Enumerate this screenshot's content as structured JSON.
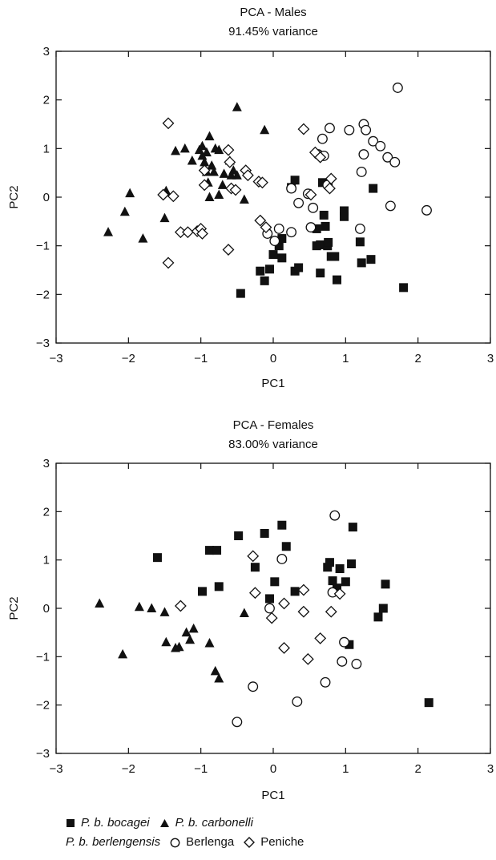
{
  "chart_data": [
    {
      "type": "scatter",
      "title": "PCA - Males",
      "subtitle": "91.45% variance",
      "xlabel": "PC1",
      "ylabel": "PC2",
      "xlim": [
        -3,
        3
      ],
      "ylim": [
        -3,
        3
      ],
      "xticks": [
        "−3",
        "−2",
        "−1",
        "0",
        "1",
        "2",
        "3"
      ],
      "yticks": [
        "3",
        "2",
        "1",
        "0",
        "−1",
        "−2",
        "−3"
      ],
      "grid": false,
      "series": [
        {
          "name": "P. b. bocagei",
          "marker": "filled-square",
          "points": [
            [
              -0.45,
              -1.98
            ],
            [
              -0.18,
              -1.52
            ],
            [
              -0.12,
              -1.72
            ],
            [
              -0.05,
              -1.48
            ],
            [
              0.0,
              -1.18
            ],
            [
              0.08,
              -1.0
            ],
            [
              0.12,
              -0.85
            ],
            [
              0.12,
              -1.25
            ],
            [
              0.25,
              0.2
            ],
            [
              0.3,
              0.35
            ],
            [
              0.3,
              -1.52
            ],
            [
              0.35,
              -1.45
            ],
            [
              0.6,
              -0.65
            ],
            [
              0.6,
              -1.0
            ],
            [
              0.65,
              -1.56
            ],
            [
              0.65,
              -0.98
            ],
            [
              0.68,
              0.3
            ],
            [
              0.7,
              -0.37
            ],
            [
              0.72,
              -0.6
            ],
            [
              0.75,
              -1.0
            ],
            [
              0.76,
              -0.93
            ],
            [
              0.8,
              -1.22
            ],
            [
              0.85,
              -1.22
            ],
            [
              0.88,
              -1.7
            ],
            [
              0.98,
              -0.28
            ],
            [
              0.98,
              -0.4
            ],
            [
              1.2,
              -0.92
            ],
            [
              1.22,
              -1.35
            ],
            [
              1.35,
              -1.28
            ],
            [
              1.38,
              0.18
            ],
            [
              1.8,
              -1.86
            ]
          ]
        },
        {
          "name": "P. b. carbonelli",
          "marker": "filled-triangle",
          "points": [
            [
              -2.28,
              -0.72
            ],
            [
              -2.05,
              -0.3
            ],
            [
              -1.98,
              0.08
            ],
            [
              -1.8,
              -0.85
            ],
            [
              -1.5,
              -0.43
            ],
            [
              -1.48,
              0.13
            ],
            [
              -1.35,
              0.95
            ],
            [
              -1.22,
              1.0
            ],
            [
              -1.12,
              0.75
            ],
            [
              -1.02,
              0.97
            ],
            [
              -0.98,
              1.05
            ],
            [
              -0.98,
              0.85
            ],
            [
              -0.95,
              0.72
            ],
            [
              -0.92,
              0.92
            ],
            [
              -0.92,
              0.52
            ],
            [
              -0.9,
              0.3
            ],
            [
              -0.88,
              0.0
            ],
            [
              -0.88,
              1.25
            ],
            [
              -0.85,
              0.65
            ],
            [
              -0.82,
              0.52
            ],
            [
              -0.8,
              1.0
            ],
            [
              -0.75,
              0.05
            ],
            [
              -0.75,
              0.97
            ],
            [
              -0.7,
              0.25
            ],
            [
              -0.68,
              0.48
            ],
            [
              -0.6,
              0.75
            ],
            [
              -0.58,
              0.45
            ],
            [
              -0.55,
              0.55
            ],
            [
              -0.5,
              0.45
            ],
            [
              -0.5,
              1.85
            ],
            [
              -0.4,
              -0.05
            ],
            [
              -0.12,
              1.38
            ]
          ]
        },
        {
          "name": "Berlenga",
          "marker": "open-circle",
          "points": [
            [
              -0.08,
              -0.75
            ],
            [
              0.02,
              -0.9
            ],
            [
              0.08,
              -0.65
            ],
            [
              0.25,
              0.18
            ],
            [
              0.25,
              -0.72
            ],
            [
              0.35,
              -0.12
            ],
            [
              0.48,
              0.07
            ],
            [
              0.52,
              -0.62
            ],
            [
              0.55,
              -0.22
            ],
            [
              0.62,
              0.88
            ],
            [
              0.68,
              1.2
            ],
            [
              0.7,
              0.85
            ],
            [
              0.75,
              0.25
            ],
            [
              0.78,
              1.42
            ],
            [
              1.05,
              1.38
            ],
            [
              1.2,
              -0.65
            ],
            [
              1.22,
              0.52
            ],
            [
              1.25,
              1.5
            ],
            [
              1.25,
              0.88
            ],
            [
              1.28,
              1.38
            ],
            [
              1.38,
              1.15
            ],
            [
              1.48,
              1.05
            ],
            [
              1.58,
              0.82
            ],
            [
              1.62,
              -0.18
            ],
            [
              1.68,
              0.72
            ],
            [
              1.72,
              2.25
            ],
            [
              2.12,
              -0.27
            ]
          ]
        },
        {
          "name": "Peniche",
          "marker": "open-diamond",
          "points": [
            [
              -1.52,
              0.05
            ],
            [
              -1.45,
              1.52
            ],
            [
              -1.45,
              -1.35
            ],
            [
              -1.38,
              0.02
            ],
            [
              -1.28,
              -0.72
            ],
            [
              -1.18,
              -0.72
            ],
            [
              -1.05,
              -0.7
            ],
            [
              -1.0,
              -0.65
            ],
            [
              -0.98,
              -0.75
            ],
            [
              -0.95,
              0.55
            ],
            [
              -0.95,
              0.25
            ],
            [
              -0.62,
              0.97
            ],
            [
              -0.62,
              -1.08
            ],
            [
              -0.6,
              0.72
            ],
            [
              -0.58,
              0.18
            ],
            [
              -0.52,
              0.15
            ],
            [
              -0.38,
              0.55
            ],
            [
              -0.35,
              0.45
            ],
            [
              -0.2,
              0.32
            ],
            [
              -0.18,
              -0.48
            ],
            [
              -0.15,
              0.3
            ],
            [
              -0.1,
              -0.62
            ],
            [
              0.42,
              1.4
            ],
            [
              0.52,
              0.05
            ],
            [
              0.58,
              0.92
            ],
            [
              0.65,
              0.82
            ],
            [
              0.78,
              0.18
            ],
            [
              0.8,
              0.38
            ]
          ]
        }
      ]
    },
    {
      "type": "scatter",
      "title": "PCA - Females",
      "subtitle": "83.00% variance",
      "xlabel": "PC1",
      "ylabel": "PC2",
      "xlim": [
        -3,
        3
      ],
      "ylim": [
        -3,
        3
      ],
      "xticks": [
        "−3",
        "−2",
        "−1",
        "0",
        "1",
        "2",
        "3"
      ],
      "yticks": [
        "3",
        "2",
        "1",
        "0",
        "−1",
        "−2",
        "−3"
      ],
      "grid": false,
      "series": [
        {
          "name": "P. b. bocagei",
          "marker": "filled-square",
          "points": [
            [
              -1.6,
              1.05
            ],
            [
              -0.88,
              1.2
            ],
            [
              -0.78,
              1.2
            ],
            [
              -0.75,
              0.45
            ],
            [
              -0.98,
              0.35
            ],
            [
              -0.48,
              1.5
            ],
            [
              -0.25,
              0.85
            ],
            [
              -0.12,
              1.55
            ],
            [
              -0.05,
              0.2
            ],
            [
              0.02,
              0.55
            ],
            [
              0.12,
              1.72
            ],
            [
              0.18,
              1.28
            ],
            [
              0.3,
              0.35
            ],
            [
              0.75,
              0.85
            ],
            [
              0.78,
              0.95
            ],
            [
              0.82,
              0.57
            ],
            [
              0.88,
              0.42
            ],
            [
              0.92,
              0.82
            ],
            [
              1.0,
              0.55
            ],
            [
              1.05,
              -0.75
            ],
            [
              1.08,
              0.92
            ],
            [
              1.1,
              1.68
            ],
            [
              1.45,
              -0.18
            ],
            [
              1.52,
              0.0
            ],
            [
              1.55,
              0.5
            ],
            [
              2.15,
              -1.95
            ]
          ]
        },
        {
          "name": "P. b. carbonelli",
          "marker": "filled-triangle",
          "points": [
            [
              -2.4,
              0.1
            ],
            [
              -2.08,
              -0.95
            ],
            [
              -1.85,
              0.03
            ],
            [
              -1.68,
              0.0
            ],
            [
              -1.5,
              -0.08
            ],
            [
              -1.48,
              -0.7
            ],
            [
              -1.35,
              -0.82
            ],
            [
              -1.3,
              -0.8
            ],
            [
              -1.2,
              -0.5
            ],
            [
              -1.15,
              -0.65
            ],
            [
              -1.1,
              -0.42
            ],
            [
              -0.88,
              -0.72
            ],
            [
              -0.8,
              -1.3
            ],
            [
              -0.75,
              -1.45
            ],
            [
              -0.4,
              -0.1
            ]
          ]
        },
        {
          "name": "Berlenga",
          "marker": "open-circle",
          "points": [
            [
              -0.5,
              -2.35
            ],
            [
              -0.28,
              -1.62
            ],
            [
              -0.05,
              0.0
            ],
            [
              0.12,
              1.02
            ],
            [
              0.33,
              -1.93
            ],
            [
              0.72,
              -1.53
            ],
            [
              0.82,
              0.33
            ],
            [
              0.85,
              1.92
            ],
            [
              0.95,
              -1.1
            ],
            [
              0.98,
              -0.7
            ],
            [
              1.15,
              -1.15
            ]
          ]
        },
        {
          "name": "Peniche",
          "marker": "open-diamond",
          "points": [
            [
              -1.28,
              0.05
            ],
            [
              -0.28,
              1.08
            ],
            [
              -0.25,
              0.32
            ],
            [
              -0.02,
              -0.2
            ],
            [
              0.15,
              0.1
            ],
            [
              0.15,
              -0.82
            ],
            [
              0.42,
              0.38
            ],
            [
              0.42,
              -0.07
            ],
            [
              0.48,
              -1.05
            ],
            [
              0.65,
              -0.62
            ],
            [
              0.8,
              -0.07
            ],
            [
              0.92,
              0.3
            ]
          ]
        }
      ]
    }
  ],
  "legend": {
    "bocagei": "P. b. bocagei",
    "carbonelli": "P. b. carbonelli",
    "berlengensis": "P. b. berlengensis",
    "berlenga": "Berlenga",
    "peniche": "Peniche"
  }
}
